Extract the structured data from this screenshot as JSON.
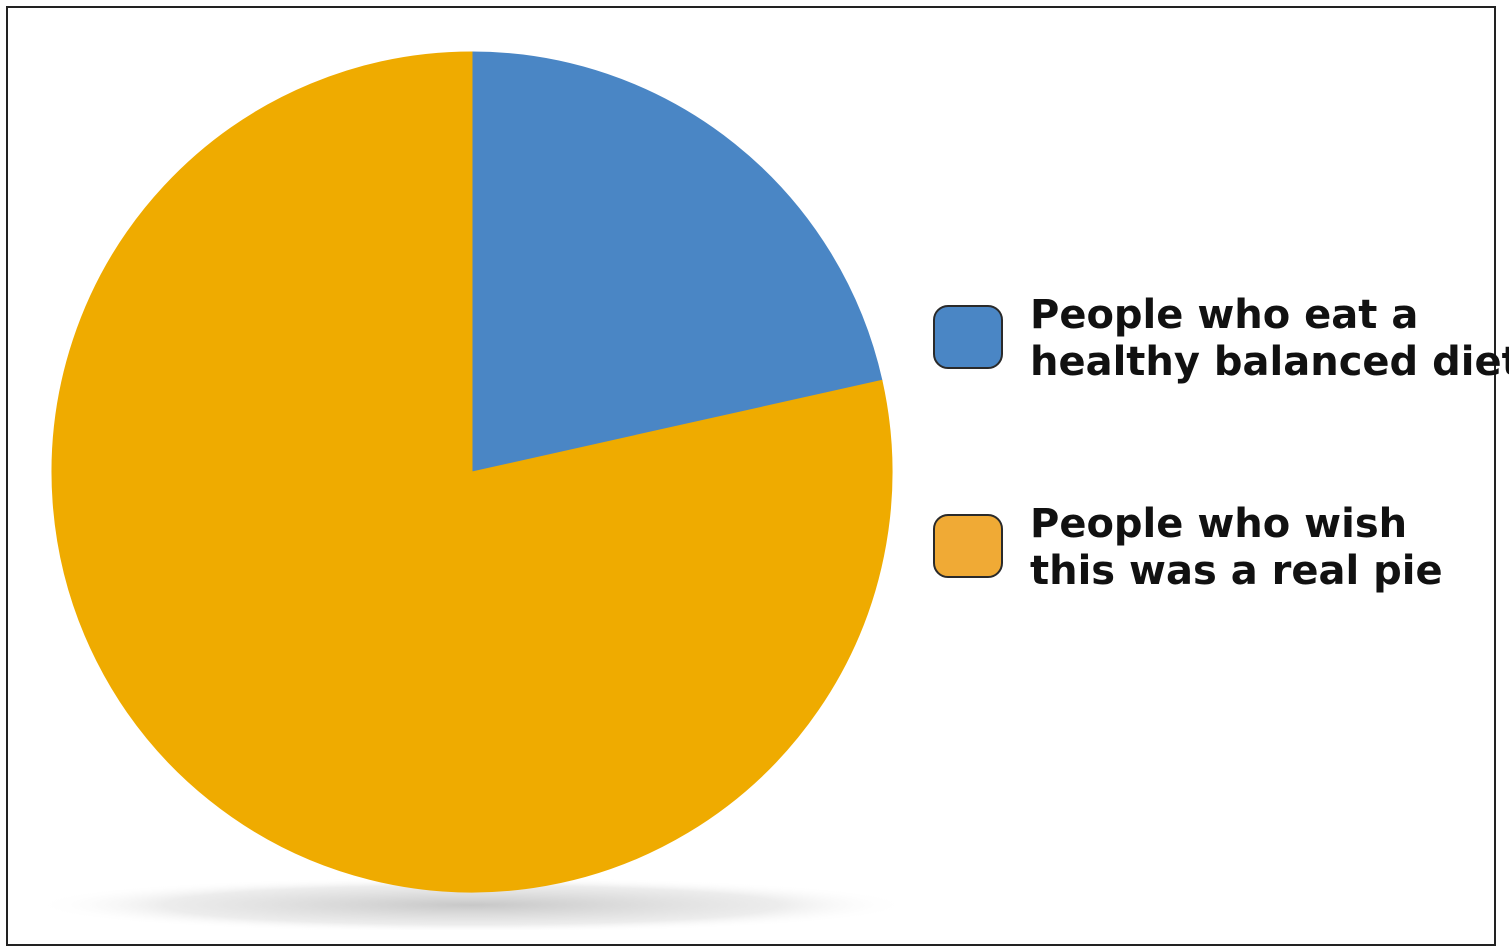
{
  "chart_data": {
    "type": "pie",
    "title": "",
    "slices": [
      {
        "label_lines": [
          "People who eat a",
          "healthy balanced diet"
        ],
        "value": 21.5,
        "color": "#4A86C5"
      },
      {
        "label_lines": [
          "People who wish",
          "this was a real pie"
        ],
        "value": 78.5,
        "color": "#EFAB00"
      }
    ],
    "legend_placement": "right",
    "legend_swatch_colors": [
      "#4A86C5",
      "#F0AA35"
    ]
  }
}
